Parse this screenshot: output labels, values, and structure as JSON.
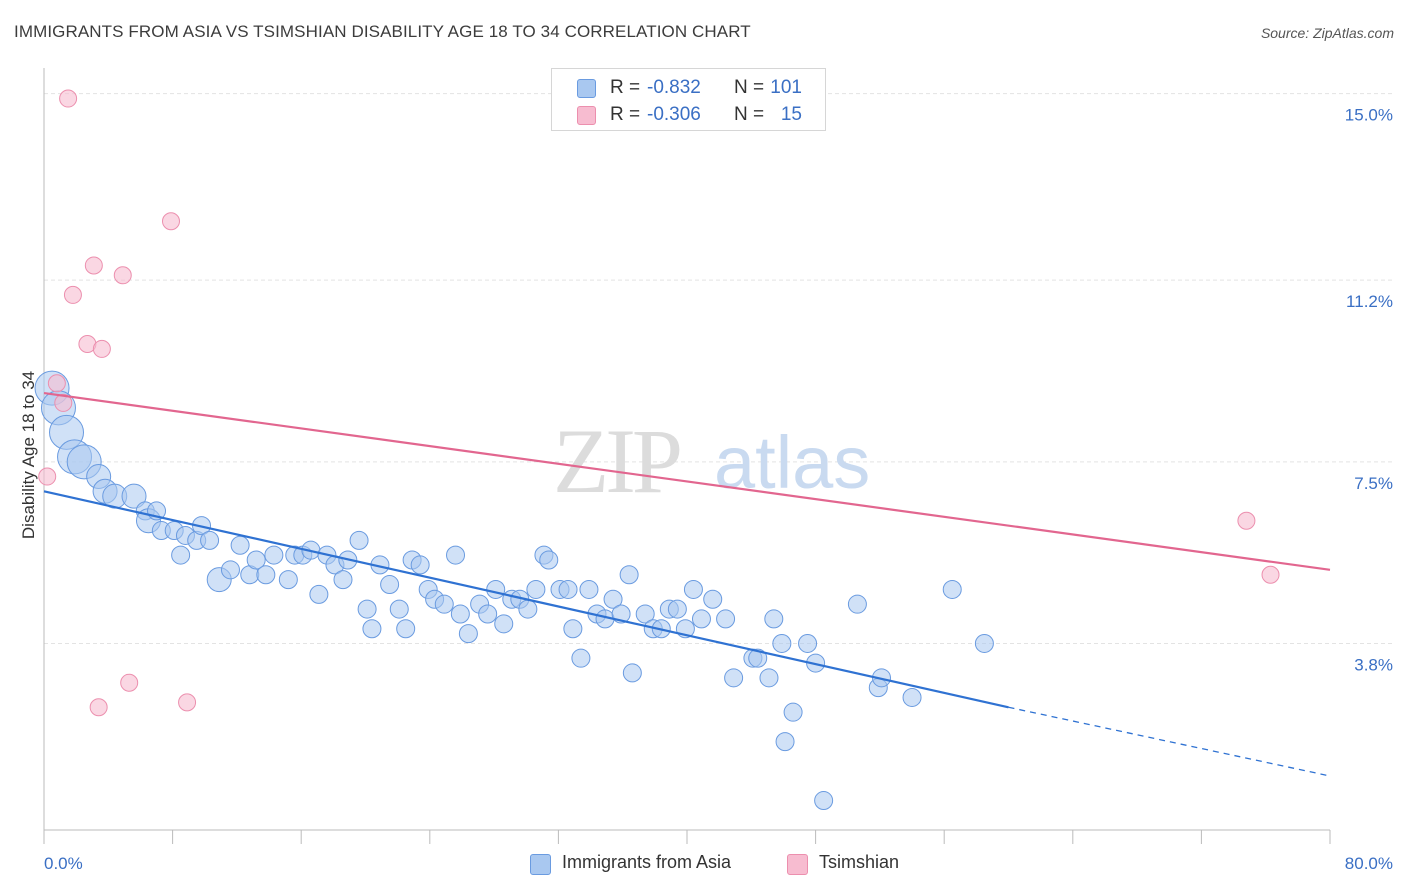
{
  "header": {
    "title": "IMMIGRANTS FROM ASIA VS TSIMSHIAN DISABILITY AGE 18 TO 34 CORRELATION CHART",
    "source": "Source: ZipAtlas.com"
  },
  "legend": {
    "rows": [
      {
        "r_label": "R =",
        "r_value": "-0.832",
        "n_label": "N =",
        "n_value": "101"
      },
      {
        "r_label": "R =",
        "r_value": "-0.306",
        "n_label": "N =",
        "n_value": "15"
      }
    ]
  },
  "bottom_legend": {
    "items": [
      {
        "label": "Immigrants from Asia"
      },
      {
        "label": "Tsimshian"
      }
    ]
  },
  "watermark": {
    "zip": "ZIP",
    "atlas": "atlas"
  },
  "colors": {
    "asia_fill": "#a9c8f0",
    "asia_stroke": "#6a9be0",
    "asia_line": "#2f72d2",
    "tsim_fill": "#f7bcd0",
    "tsim_stroke": "#ec8fae",
    "tsim_line": "#e2668f",
    "grid": "#e3e3e3",
    "label": "#3a6fc4"
  },
  "chart_data": {
    "type": "scatter",
    "title": "IMMIGRANTS FROM ASIA VS TSIMSHIAN DISABILITY AGE 18 TO 34 CORRELATION CHART",
    "xlabel": "",
    "ylabel": "Disability Age 18 to 34",
    "xlim": [
      0,
      80
    ],
    "ylim": [
      0,
      15.4
    ],
    "x_tick_labels": [
      "0.0%",
      "80.0%"
    ],
    "y_ticks": [
      3.8,
      7.5,
      11.2,
      15.0
    ],
    "y_tick_labels": [
      "3.8%",
      "7.5%",
      "11.2%",
      "15.0%"
    ],
    "grid": true,
    "legend_position": "top-center",
    "series": [
      {
        "name": "Immigrants from Asia",
        "r": -0.832,
        "n": 101,
        "trend": {
          "x0": 0,
          "y0": 6.9,
          "x1": 60,
          "y1": 2.5,
          "dash_x1": 80,
          "dash_y1": 1.1
        },
        "points": [
          [
            0.5,
            9.0,
            3
          ],
          [
            0.9,
            8.6,
            3
          ],
          [
            1.4,
            8.1,
            3
          ],
          [
            1.9,
            7.6,
            3
          ],
          [
            2.5,
            7.5,
            3
          ],
          [
            3.4,
            7.2,
            2
          ],
          [
            3.8,
            6.9,
            2
          ],
          [
            4.4,
            6.8,
            2
          ],
          [
            5.6,
            6.8,
            2
          ],
          [
            6.3,
            6.5,
            1
          ],
          [
            6.5,
            6.3,
            2
          ],
          [
            7.0,
            6.5,
            1
          ],
          [
            7.3,
            6.1,
            1
          ],
          [
            8.1,
            6.1,
            1
          ],
          [
            8.5,
            5.6,
            1
          ],
          [
            8.8,
            6.0,
            1
          ],
          [
            9.5,
            5.9,
            1
          ],
          [
            9.8,
            6.2,
            1
          ],
          [
            10.3,
            5.9,
            1
          ],
          [
            10.9,
            5.1,
            2
          ],
          [
            11.6,
            5.3,
            1
          ],
          [
            12.2,
            5.8,
            1
          ],
          [
            12.8,
            5.2,
            1
          ],
          [
            13.2,
            5.5,
            1
          ],
          [
            13.8,
            5.2,
            1
          ],
          [
            14.3,
            5.6,
            1
          ],
          [
            15.2,
            5.1,
            1
          ],
          [
            15.6,
            5.6,
            1
          ],
          [
            16.1,
            5.6,
            1
          ],
          [
            16.6,
            5.7,
            1
          ],
          [
            17.1,
            4.8,
            1
          ],
          [
            17.6,
            5.6,
            1
          ],
          [
            18.1,
            5.4,
            1
          ],
          [
            18.6,
            5.1,
            1
          ],
          [
            18.9,
            5.5,
            1
          ],
          [
            19.6,
            5.9,
            1
          ],
          [
            20.1,
            4.5,
            1
          ],
          [
            20.4,
            4.1,
            1
          ],
          [
            20.9,
            5.4,
            1
          ],
          [
            21.5,
            5.0,
            1
          ],
          [
            22.1,
            4.5,
            1
          ],
          [
            22.5,
            4.1,
            1
          ],
          [
            22.9,
            5.5,
            1
          ],
          [
            23.4,
            5.4,
            1
          ],
          [
            23.9,
            4.9,
            1
          ],
          [
            24.3,
            4.7,
            1
          ],
          [
            24.9,
            4.6,
            1
          ],
          [
            25.6,
            5.6,
            1
          ],
          [
            25.9,
            4.4,
            1
          ],
          [
            26.4,
            4.0,
            1
          ],
          [
            27.1,
            4.6,
            1
          ],
          [
            27.6,
            4.4,
            1
          ],
          [
            28.1,
            4.9,
            1
          ],
          [
            28.6,
            4.2,
            1
          ],
          [
            29.1,
            4.7,
            1
          ],
          [
            29.6,
            4.7,
            1
          ],
          [
            30.1,
            4.5,
            1
          ],
          [
            30.6,
            4.9,
            1
          ],
          [
            31.1,
            5.6,
            1
          ],
          [
            31.4,
            5.5,
            1
          ],
          [
            32.1,
            4.9,
            1
          ],
          [
            32.6,
            4.9,
            1
          ],
          [
            32.9,
            4.1,
            1
          ],
          [
            33.4,
            3.5,
            1
          ],
          [
            33.9,
            4.9,
            1
          ],
          [
            34.4,
            4.4,
            1
          ],
          [
            34.9,
            4.3,
            1
          ],
          [
            35.4,
            4.7,
            1
          ],
          [
            35.9,
            4.4,
            1
          ],
          [
            36.4,
            5.2,
            1
          ],
          [
            36.6,
            3.2,
            1
          ],
          [
            37.4,
            4.4,
            1
          ],
          [
            37.9,
            4.1,
            1
          ],
          [
            38.4,
            4.1,
            1
          ],
          [
            38.9,
            4.5,
            1
          ],
          [
            39.4,
            4.5,
            1
          ],
          [
            39.9,
            4.1,
            1
          ],
          [
            40.4,
            4.9,
            1
          ],
          [
            40.9,
            4.3,
            1
          ],
          [
            41.6,
            4.7,
            1
          ],
          [
            42.4,
            4.3,
            1
          ],
          [
            42.9,
            3.1,
            1
          ],
          [
            44.1,
            3.5,
            1
          ],
          [
            44.4,
            3.5,
            1
          ],
          [
            45.1,
            3.1,
            1
          ],
          [
            45.4,
            4.3,
            1
          ],
          [
            45.9,
            3.8,
            1
          ],
          [
            46.6,
            2.4,
            1
          ],
          [
            46.1,
            1.8,
            1
          ],
          [
            47.5,
            3.8,
            1
          ],
          [
            48.0,
            3.4,
            1
          ],
          [
            48.5,
            0.6,
            1
          ],
          [
            50.6,
            4.6,
            1
          ],
          [
            51.9,
            2.9,
            1
          ],
          [
            52.1,
            3.1,
            1
          ],
          [
            54.0,
            2.7,
            1
          ],
          [
            56.5,
            4.9,
            1
          ],
          [
            58.5,
            3.8,
            1
          ]
        ]
      },
      {
        "name": "Tsimshian",
        "r": -0.306,
        "n": 15,
        "trend": {
          "x0": 0,
          "y0": 8.9,
          "x1": 80,
          "y1": 5.3
        },
        "points": [
          [
            0.2,
            7.2
          ],
          [
            1.2,
            8.7
          ],
          [
            1.5,
            14.9
          ],
          [
            1.8,
            10.9
          ],
          [
            2.7,
            9.9
          ],
          [
            3.1,
            11.5
          ],
          [
            3.4,
            2.5
          ],
          [
            3.6,
            9.8
          ],
          [
            4.9,
            11.3
          ],
          [
            5.3,
            3.0
          ],
          [
            7.9,
            12.4
          ],
          [
            8.9,
            2.6
          ],
          [
            0.8,
            9.1
          ],
          [
            74.8,
            6.3
          ],
          [
            76.3,
            5.2
          ]
        ]
      }
    ]
  }
}
